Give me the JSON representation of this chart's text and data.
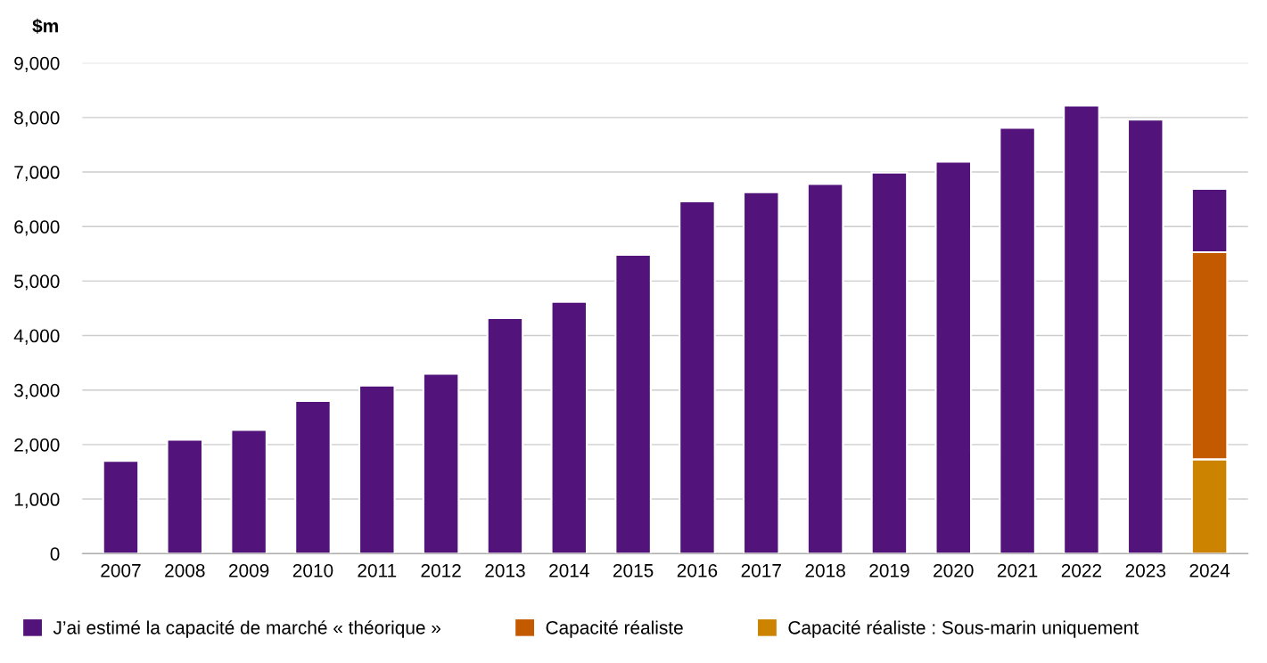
{
  "chart_data": {
    "type": "bar",
    "stacked": true,
    "ylabel": "$m",
    "categories": [
      "2007",
      "2008",
      "2009",
      "2010",
      "2011",
      "2012",
      "2013",
      "2014",
      "2015",
      "2016",
      "2017",
      "2018",
      "2019",
      "2020",
      "2021",
      "2022",
      "2023",
      "2024"
    ],
    "series": [
      {
        "name": "Capacité réaliste : Sous-marin uniquement",
        "color": "#cc8400",
        "values": [
          null,
          null,
          null,
          null,
          null,
          null,
          null,
          null,
          null,
          null,
          null,
          null,
          null,
          null,
          null,
          null,
          null,
          1730
        ]
      },
      {
        "name": "Capacité réaliste",
        "color": "#c45a00",
        "values": [
          null,
          null,
          null,
          null,
          null,
          null,
          null,
          null,
          null,
          null,
          null,
          null,
          null,
          null,
          null,
          null,
          null,
          3800
        ]
      },
      {
        "name": "J’ai estimé la capacité de marché « théorique »",
        "color": "#52137a",
        "values": [
          1700,
          2090,
          2270,
          2800,
          3080,
          3300,
          4320,
          4620,
          5480,
          6460,
          6630,
          6780,
          6990,
          7190,
          7810,
          8220,
          7960,
          1160
        ]
      }
    ],
    "ylim": [
      0,
      9000
    ],
    "yticks": [
      {
        "value": 0,
        "label": "0"
      },
      {
        "value": 1000,
        "label": "1,000"
      },
      {
        "value": 2000,
        "label": "2,000"
      },
      {
        "value": 3000,
        "label": "3,000"
      },
      {
        "value": 4000,
        "label": "4,000"
      },
      {
        "value": 5000,
        "label": "5,000"
      },
      {
        "value": 6000,
        "label": "6,000"
      },
      {
        "value": 7000,
        "label": "7,000"
      },
      {
        "value": 8000,
        "label": "8,000"
      },
      {
        "value": 9000,
        "label": "9,000"
      }
    ],
    "grid": "y",
    "legend": "bottom"
  }
}
